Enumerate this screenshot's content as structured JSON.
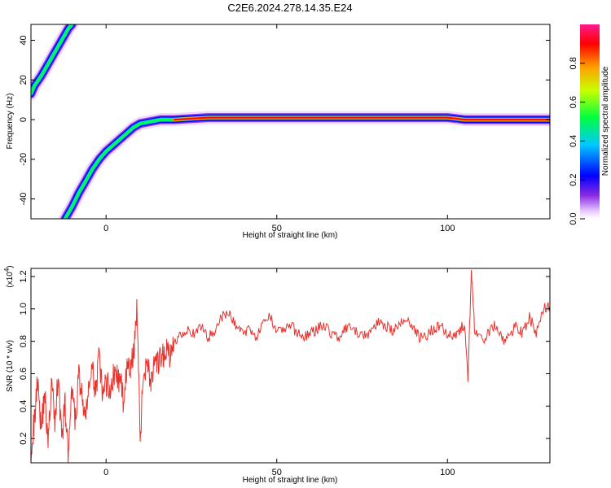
{
  "title": "C2E6.2024.278.14.35.E24",
  "chart_data": [
    {
      "type": "heatmap",
      "xlabel": "Height of straight line (km)",
      "ylabel": "Frequency (Hz)",
      "xlim": [
        -22,
        130
      ],
      "ylim": [
        -50,
        48
      ],
      "xticks": [
        0,
        50,
        100
      ],
      "yticks": [
        -40,
        -20,
        0,
        20,
        40
      ],
      "grid": false,
      "colorbar": {
        "label": "Normalized spectral amplitude",
        "ticks": [
          "0.0",
          "0.2",
          "0.4",
          "0.6",
          "0.8"
        ],
        "tick_values": [
          0.0,
          0.2,
          0.4,
          0.6,
          0.8
        ],
        "range": [
          0,
          1
        ],
        "colormap": "rainbow"
      },
      "ridges": [
        {
          "points": [
            [
              -22,
              13
            ],
            [
              -21,
              17
            ],
            [
              -19,
              22
            ],
            [
              -17,
              28
            ],
            [
              -15,
              34
            ],
            [
              -13,
              40
            ],
            [
              -11,
              46
            ],
            [
              -10,
              48
            ]
          ],
          "amplitude": 0.35
        },
        {
          "points": [
            [
              -12,
              -50
            ],
            [
              -10,
              -44
            ],
            [
              -8,
              -37
            ],
            [
              -6,
              -31
            ],
            [
              -4,
              -25
            ],
            [
              -2,
              -20
            ],
            [
              0,
              -16
            ],
            [
              2,
              -13
            ],
            [
              4,
              -10
            ],
            [
              6,
              -7
            ],
            [
              8,
              -4
            ],
            [
              10,
              -2
            ],
            [
              13,
              -1
            ],
            [
              16,
              0
            ],
            [
              20,
              0
            ],
            [
              30,
              1
            ],
            [
              40,
              1
            ],
            [
              50,
              1
            ],
            [
              60,
              1
            ],
            [
              70,
              1
            ],
            [
              80,
              1
            ],
            [
              90,
              1
            ],
            [
              100,
              1
            ],
            [
              105,
              0
            ],
            [
              110,
              0
            ],
            [
              120,
              0
            ],
            [
              130,
              0
            ]
          ],
          "amplitude": 0.9
        }
      ]
    },
    {
      "type": "line",
      "xlabel": "Height of straight line (km)",
      "ylabel": "SNR (10 * v/v)",
      "exponent_label": "(x10",
      "exponent_sup": "4",
      "exponent_close": ")",
      "xlim": [
        -22,
        130
      ],
      "ylim": [
        0.05,
        1.25
      ],
      "xticks": [
        0,
        50,
        100
      ],
      "yticks": [
        0.2,
        0.4,
        0.6,
        0.8,
        1.0,
        1.2
      ],
      "ytick_labels": [
        "0.2",
        "0.4",
        "0.6",
        "0.8",
        "1.0",
        "1.2"
      ],
      "color": "#e8322d",
      "grid": false,
      "series": [
        {
          "x": [
            -22,
            -21,
            -20,
            -19,
            -18,
            -17,
            -16,
            -15,
            -14,
            -13,
            -12,
            -11,
            -10,
            -9,
            -8,
            -7,
            -6,
            -5,
            -4,
            -3,
            -2,
            -1,
            0,
            1,
            2,
            3,
            4,
            5,
            6,
            7,
            8,
            9,
            10,
            11,
            12,
            13,
            14,
            15,
            16,
            17,
            18,
            19,
            20,
            22,
            24,
            26,
            28,
            30,
            32,
            34,
            36,
            38,
            40,
            42,
            44,
            46,
            48,
            50,
            52,
            54,
            56,
            58,
            60,
            62,
            64,
            66,
            68,
            70,
            72,
            74,
            76,
            78,
            80,
            82,
            84,
            86,
            88,
            90,
            92,
            94,
            96,
            98,
            100,
            102,
            104,
            105,
            106,
            107,
            108,
            110,
            112,
            114,
            116,
            118,
            120,
            122,
            124,
            126,
            128,
            130
          ],
          "values": [
            0.15,
            0.3,
            0.6,
            0.25,
            0.5,
            0.15,
            0.55,
            0.3,
            0.6,
            0.2,
            0.4,
            0.07,
            0.5,
            0.3,
            0.6,
            0.45,
            0.3,
            0.55,
            0.6,
            0.5,
            0.7,
            0.45,
            0.55,
            0.5,
            0.58,
            0.6,
            0.55,
            0.45,
            0.62,
            0.62,
            0.7,
            1.02,
            0.22,
            0.6,
            0.7,
            0.55,
            0.62,
            0.65,
            0.68,
            0.72,
            0.75,
            0.7,
            0.8,
            0.85,
            0.88,
            0.83,
            0.9,
            0.82,
            0.88,
            0.95,
            0.97,
            0.9,
            0.85,
            0.88,
            0.83,
            0.9,
            0.95,
            0.88,
            0.87,
            0.9,
            0.85,
            0.83,
            0.85,
            0.88,
            0.9,
            0.85,
            0.82,
            0.87,
            0.88,
            0.84,
            0.83,
            0.88,
            0.92,
            0.9,
            0.86,
            0.9,
            0.95,
            0.88,
            0.82,
            0.84,
            0.88,
            0.9,
            0.85,
            0.84,
            0.88,
            0.9,
            0.55,
            1.25,
            0.85,
            0.8,
            0.85,
            0.9,
            0.8,
            0.82,
            0.9,
            0.85,
            0.95,
            0.85,
            1.0,
            1.02
          ]
        }
      ]
    }
  ]
}
